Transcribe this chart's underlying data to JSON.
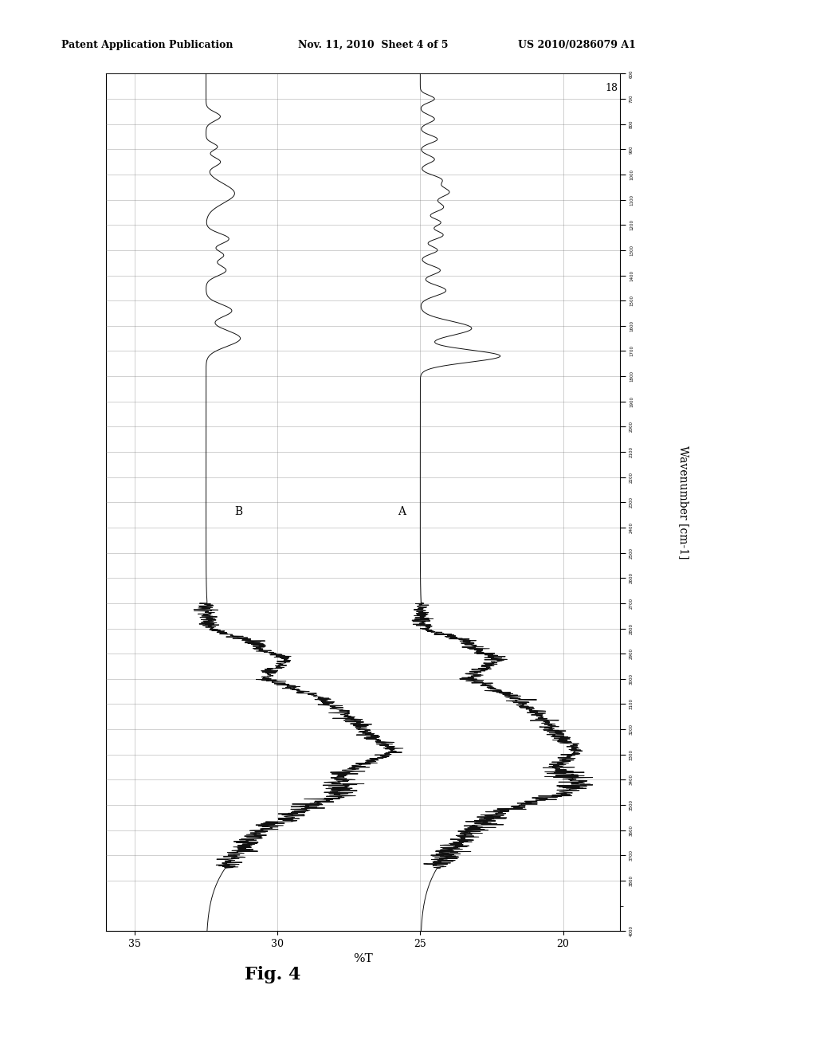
{
  "header_left": "Patent Application Publication",
  "header_mid": "Nov. 11, 2010  Sheet 4 of 5",
  "header_right": "US 2010/0286079 A1",
  "figure_label": "Fig. 4",
  "ylabel_axis": "%T",
  "xlabel_axis": "Wavenumber [cm-1]",
  "pct_T_ticks": [
    20,
    25,
    30,
    35
  ],
  "pct_T_min": 18,
  "pct_T_max": 36,
  "wn_min": 600,
  "wn_max": 4000,
  "label_A": "A",
  "label_B": "B",
  "background_color": "#ffffff",
  "line_color": "#111111",
  "grid_color": "#777777",
  "wn_tick_labels": [
    "4000",
    "3800",
    "3700",
    "3600",
    "3500",
    "3400",
    "3300",
    "3200",
    "3100",
    "3000",
    "2900",
    "2800",
    "2700",
    "2600",
    "2500",
    "2400",
    "2300",
    "2200",
    "2100",
    "2000",
    "1900",
    "1800",
    "1700",
    "1600",
    "1500",
    "1400",
    "1300",
    "1200",
    "1100",
    "1000",
    "900",
    "800",
    "700",
    "600"
  ],
  "wn_tick_values": [
    4000,
    3800,
    3700,
    3600,
    3500,
    3400,
    3300,
    3200,
    3100,
    3000,
    2900,
    2800,
    2700,
    2600,
    2500,
    2400,
    2300,
    2200,
    2100,
    2000,
    1900,
    1800,
    1700,
    1600,
    1500,
    1400,
    1300,
    1200,
    1100,
    1000,
    900,
    800,
    700,
    600
  ]
}
